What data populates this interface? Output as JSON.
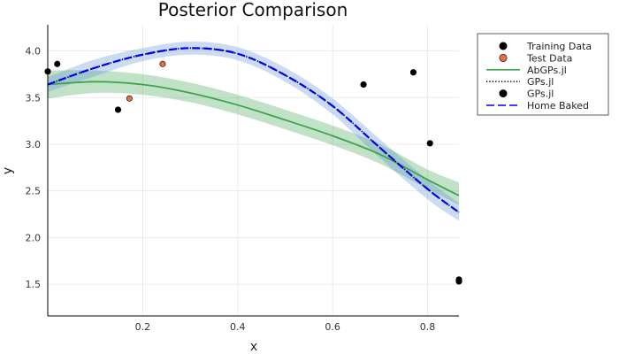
{
  "chart_data": {
    "type": "scatter",
    "title": "Posterior Comparison",
    "xlabel": "x",
    "ylabel": "y",
    "xlim": [
      0.0,
      0.866
    ],
    "ylim": [
      1.16,
      4.28
    ],
    "xticks": [
      0.2,
      0.4,
      0.6,
      0.8
    ],
    "xtick_labels": [
      "0.2",
      "0.4",
      "0.6",
      "0.8"
    ],
    "yticks": [
      1.5,
      2.0,
      2.5,
      3.0,
      3.5,
      4.0
    ],
    "ytick_labels": [
      "1.5",
      "2.0",
      "2.5",
      "3.0",
      "3.5",
      "4.0"
    ],
    "grid": true,
    "legend_position": "outside-top-right",
    "x_grid": [
      0.0,
      0.1,
      0.2,
      0.3,
      0.4,
      0.5,
      0.6,
      0.7,
      0.8,
      0.866
    ],
    "series": [
      {
        "name": "Training Data",
        "kind": "scatter",
        "color": "#000000",
        "x": [
          0.0,
          0.02,
          0.148,
          0.665,
          0.77,
          0.805,
          0.866,
          0.866
        ],
        "y": [
          3.78,
          3.86,
          3.37,
          3.64,
          3.77,
          3.01,
          1.53,
          1.55
        ]
      },
      {
        "name": "Test Data",
        "kind": "scatter",
        "color": "#e26f46",
        "x": [
          0.172,
          0.242
        ],
        "y": [
          3.49,
          3.86
        ]
      },
      {
        "name": "AbGPs.jl",
        "kind": "line",
        "style": "solid",
        "color": "#3da44d",
        "band_color": "#3da44d",
        "mean": [
          3.64,
          3.67,
          3.64,
          3.55,
          3.42,
          3.26,
          3.09,
          2.89,
          2.62,
          2.45
        ],
        "lower": [
          3.49,
          3.55,
          3.53,
          3.45,
          3.32,
          3.16,
          2.99,
          2.79,
          2.52,
          2.35
        ],
        "upper": [
          3.79,
          3.79,
          3.75,
          3.66,
          3.53,
          3.37,
          3.2,
          3.0,
          2.73,
          2.59
        ]
      },
      {
        "name": "GPs.jl",
        "kind": "line",
        "style": "dotted",
        "color": "#000000",
        "band_color": "#5b8fdb",
        "mean": [
          3.64,
          3.82,
          3.96,
          4.03,
          3.97,
          3.74,
          3.41,
          2.96,
          2.52,
          2.27
        ],
        "lower": [
          3.56,
          3.73,
          3.89,
          3.96,
          3.9,
          3.67,
          3.32,
          2.85,
          2.41,
          2.18
        ],
        "upper": [
          3.72,
          3.91,
          4.03,
          4.1,
          4.04,
          3.82,
          3.49,
          3.05,
          2.62,
          2.37
        ]
      },
      {
        "name": "GPs.jl",
        "kind": "scatter",
        "color": "#000000",
        "x": [
          0.0,
          0.02,
          0.148,
          0.665,
          0.77,
          0.805,
          0.866,
          0.866
        ],
        "y": [
          3.78,
          3.86,
          3.37,
          3.64,
          3.77,
          3.01,
          1.53,
          1.55
        ]
      },
      {
        "name": "Home Baked",
        "kind": "line",
        "style": "dashed",
        "color": "#0000ee",
        "mean": [
          3.64,
          3.82,
          3.96,
          4.03,
          3.97,
          3.74,
          3.41,
          2.96,
          2.52,
          2.27
        ]
      }
    ]
  }
}
